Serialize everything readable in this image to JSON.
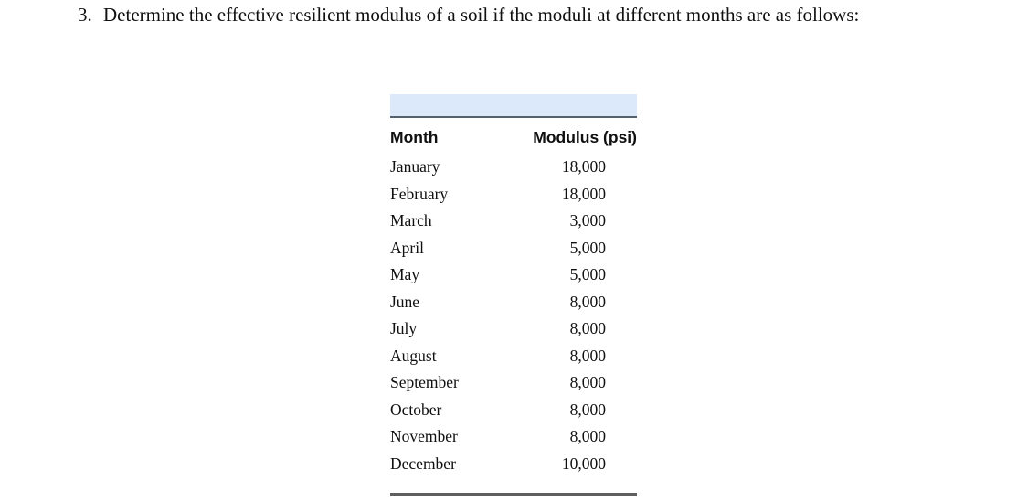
{
  "problem": {
    "number": "3.",
    "text": "Determine the effective resilient modulus of a soil if the moduli at different months are as follows:"
  },
  "table": {
    "headers": [
      "Month",
      "Modulus (psi)"
    ],
    "rows": [
      {
        "month": "January",
        "modulus": "18,000"
      },
      {
        "month": "February",
        "modulus": "18,000"
      },
      {
        "month": "March",
        "modulus": "3,000"
      },
      {
        "month": "April",
        "modulus": "5,000"
      },
      {
        "month": "May",
        "modulus": "5,000"
      },
      {
        "month": "June",
        "modulus": "8,000"
      },
      {
        "month": "July",
        "modulus": "8,000"
      },
      {
        "month": "August",
        "modulus": "8,000"
      },
      {
        "month": "September",
        "modulus": "8,000"
      },
      {
        "month": "October",
        "modulus": "8,000"
      },
      {
        "month": "November",
        "modulus": "8,000"
      },
      {
        "month": "December",
        "modulus": "10,000"
      }
    ]
  },
  "colors": {
    "header_bar": "#dce9fa",
    "header_rule": "#56616e",
    "bottom_rule": "#5f5f5f"
  }
}
